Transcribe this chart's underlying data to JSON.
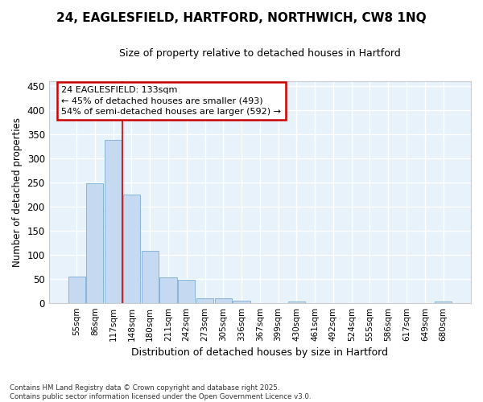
{
  "title": "24, EAGLESFIELD, HARTFORD, NORTHWICH, CW8 1NQ",
  "subtitle": "Size of property relative to detached houses in Hartford",
  "xlabel": "Distribution of detached houses by size in Hartford",
  "ylabel": "Number of detached properties",
  "footer_line1": "Contains HM Land Registry data © Crown copyright and database right 2025.",
  "footer_line2": "Contains public sector information licensed under the Open Government Licence v3.0.",
  "categories": [
    "55sqm",
    "86sqm",
    "117sqm",
    "148sqm",
    "180sqm",
    "211sqm",
    "242sqm",
    "273sqm",
    "305sqm",
    "336sqm",
    "367sqm",
    "399sqm",
    "430sqm",
    "461sqm",
    "492sqm",
    "524sqm",
    "555sqm",
    "586sqm",
    "617sqm",
    "649sqm",
    "680sqm"
  ],
  "values": [
    55,
    247,
    338,
    224,
    107,
    53,
    48,
    10,
    10,
    5,
    0,
    0,
    3,
    0,
    0,
    0,
    0,
    0,
    0,
    0,
    2
  ],
  "bar_color": "#c5daf0",
  "bar_edge_color": "#88b4d8",
  "plot_bg_color": "#e8f2fb",
  "fig_bg_color": "#ffffff",
  "grid_color": "#ffffff",
  "vline_x": 2.5,
  "vline_color": "#cc0000",
  "annotation_title": "24 EAGLESFIELD: 133sqm",
  "annotation_line1": "← 45% of detached houses are smaller (493)",
  "annotation_line2": "54% of semi-detached houses are larger (592) →",
  "annotation_box_color": "#cc0000",
  "ylim": [
    0,
    460
  ],
  "yticks": [
    0,
    50,
    100,
    150,
    200,
    250,
    300,
    350,
    400,
    450
  ],
  "title_fontsize": 11,
  "subtitle_fontsize": 9
}
